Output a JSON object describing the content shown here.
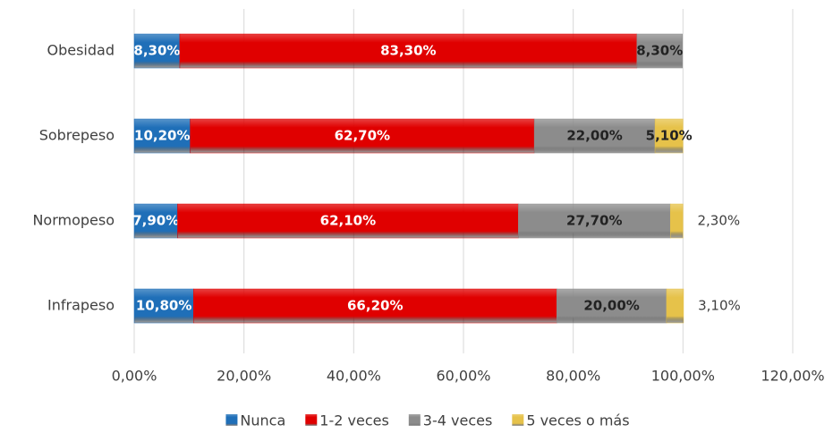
{
  "chart_data": {
    "type": "stacked-bar-horizontal",
    "categories": [
      "Obesidad",
      "Sobrepeso",
      "Normopeso",
      "Infrapeso"
    ],
    "series": [
      {
        "name": "Nunca",
        "color": "#1f6fb8",
        "values": [
          8.3,
          10.2,
          7.9,
          10.8
        ],
        "value_labels": [
          "8,30%",
          "10,20%",
          "7,90%",
          "10,80%"
        ]
      },
      {
        "name": "1-2 veces",
        "color": "#e00000",
        "values": [
          83.3,
          62.7,
          62.1,
          66.2
        ],
        "value_labels": [
          "83,30%",
          "62,70%",
          "62,10%",
          "66,20%"
        ]
      },
      {
        "name": "3-4 veces",
        "color": "#8c8c8c",
        "values": [
          8.3,
          22.0,
          27.7,
          20.0
        ],
        "value_labels": [
          "8,30%",
          "22,00%",
          "27,70%",
          "20,00%"
        ]
      },
      {
        "name": "5 veces o más",
        "color": "#e6c24a",
        "values": [
          null,
          5.1,
          2.3,
          3.1
        ],
        "value_labels": [
          null,
          "5,10%",
          "2,30%",
          "3,10%"
        ]
      }
    ],
    "xlim": [
      0,
      120
    ],
    "xticks": [
      {
        "value": 0,
        "label": "0,00%"
      },
      {
        "value": 20,
        "label": "20,00%"
      },
      {
        "value": 40,
        "label": "40,00%"
      },
      {
        "value": 60,
        "label": "60,00%"
      },
      {
        "value": 80,
        "label": "80,00%"
      },
      {
        "value": 100,
        "label": "100,00%"
      },
      {
        "value": 120,
        "label": "120,00%"
      }
    ],
    "grid": true,
    "legend": "bottom"
  }
}
